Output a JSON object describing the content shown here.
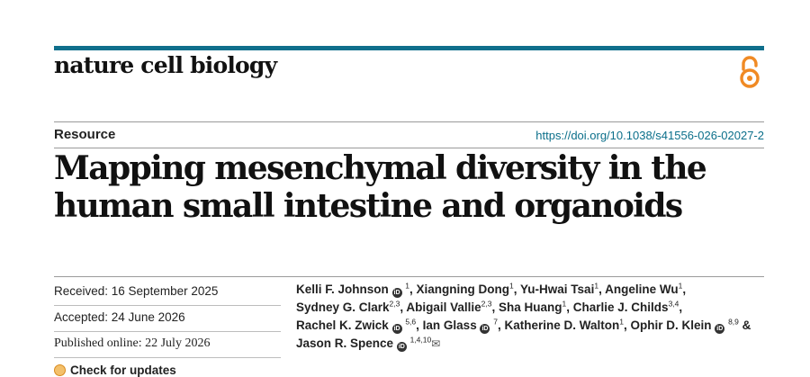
{
  "journal": "nature cell biology",
  "section": "Resource",
  "doi": "https://doi.org/10.1038/s41556-026-02027-2",
  "title_lines": [
    "Mapping mesenchymal diversity in the",
    "human small intestine and organoids"
  ],
  "dates": {
    "received": "Received: 16 September 2025",
    "accepted": "Accepted: 24 June 2026",
    "published": "Published online: 22 July 2026"
  },
  "check_updates": "Check for updates",
  "orcid_glyph": "iD",
  "mail_glyph": "✉",
  "authors": [
    {
      "name": "Kelli F. Johnson",
      "orcid": true,
      "sup": "1",
      "after": ", "
    },
    {
      "name": "Xiangning Dong",
      "orcid": false,
      "sup": "1",
      "after": ", "
    },
    {
      "name": "Yu-Hwai Tsai",
      "orcid": false,
      "sup": "1",
      "after": ", "
    },
    {
      "name": "Angeline Wu",
      "orcid": false,
      "sup": "1",
      "after": ","
    },
    {
      "name": "Sydney G. Clark",
      "orcid": false,
      "sup": "2,3",
      "after": ", "
    },
    {
      "name": "Abigail Vallie",
      "orcid": false,
      "sup": "2,3",
      "after": ", "
    },
    {
      "name": "Sha Huang",
      "orcid": false,
      "sup": "1",
      "after": ", "
    },
    {
      "name": "Charlie J. Childs",
      "orcid": false,
      "sup": "3,4",
      "after": ","
    },
    {
      "name": "Rachel K. Zwick",
      "orcid": true,
      "sup": "5,6",
      "after": ", "
    },
    {
      "name": "Ian Glass",
      "orcid": true,
      "sup": "7",
      "after": ", "
    },
    {
      "name": "Katherine D. Walton",
      "orcid": false,
      "sup": "1",
      "after": ", "
    },
    {
      "name": "Ophir D. Klein",
      "orcid": true,
      "sup": "8,9",
      "after": " &"
    },
    {
      "name": "Jason R. Spence",
      "orcid": true,
      "sup": "1,4,10",
      "after": "",
      "mail": true
    }
  ]
}
